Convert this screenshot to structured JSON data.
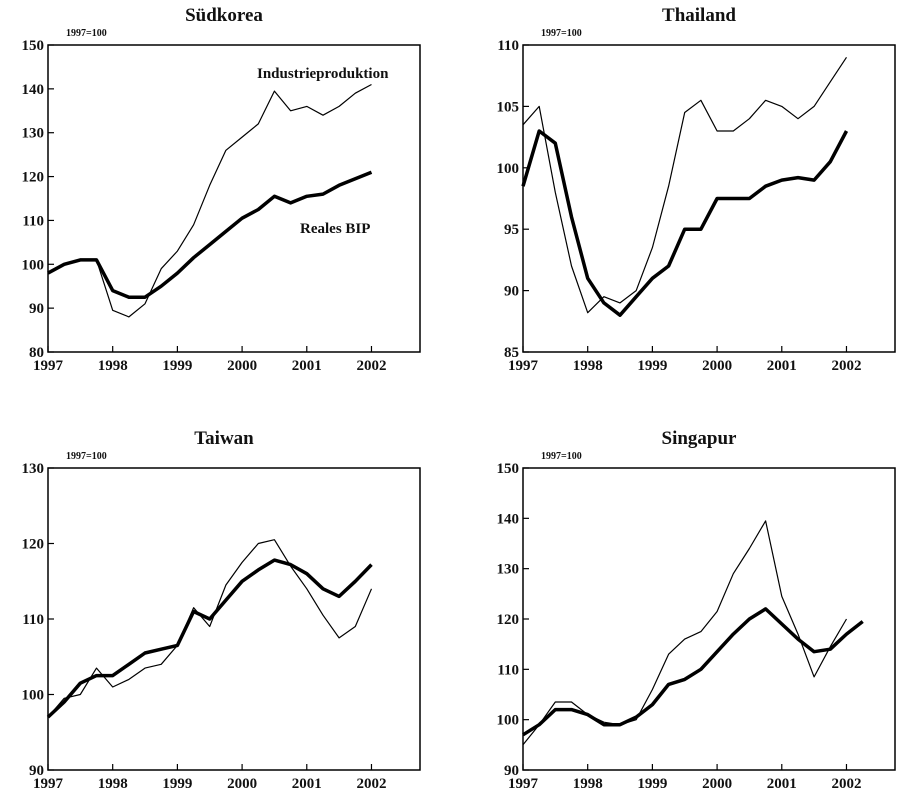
{
  "chart_data": [
    {
      "type": "line",
      "title": "Südkorea",
      "subtitle": "1997=100",
      "x": [
        1997,
        1997.25,
        1997.5,
        1997.75,
        1998,
        1998.25,
        1998.5,
        1998.75,
        1999,
        1999.25,
        1999.5,
        1999.75,
        2000,
        2000.25,
        2000.5,
        2000.75,
        2001,
        2001.25,
        2001.5,
        2001.75,
        2002
      ],
      "series": [
        {
          "name": "Industrieproduktion",
          "color": "#000000",
          "values": [
            98,
            100,
            101,
            101,
            89.5,
            88,
            91,
            99,
            103,
            109,
            118,
            126,
            129,
            132,
            139.5,
            135,
            136,
            134,
            136,
            139,
            141
          ]
        },
        {
          "name": "Reales BIP",
          "color": "#000000",
          "values": [
            98,
            100,
            101,
            101,
            94,
            92.5,
            92.5,
            95,
            98,
            101.5,
            104.5,
            107.5,
            110.5,
            112.5,
            115.5,
            114,
            115.5,
            116,
            118,
            119.5,
            121
          ]
        }
      ],
      "xlim": [
        1997,
        2002.75
      ],
      "xticks": [
        1997,
        1998,
        1999,
        2000,
        2001,
        2002
      ],
      "ylim": [
        80,
        150
      ],
      "yticks": [
        80,
        90,
        100,
        110,
        120,
        130,
        140,
        150
      ],
      "grid": false
    },
    {
      "type": "line",
      "title": "Thailand",
      "subtitle": "1997=100",
      "x": [
        1997,
        1997.25,
        1997.5,
        1997.75,
        1998,
        1998.25,
        1998.5,
        1998.75,
        1999,
        1999.25,
        1999.5,
        1999.75,
        2000,
        2000.25,
        2000.5,
        2000.75,
        2001,
        2001.25,
        2001.5,
        2001.75,
        2002
      ],
      "series": [
        {
          "color": "#000000",
          "values": [
            103.5,
            105,
            98,
            92,
            88.2,
            89.5,
            89,
            90,
            93.5,
            98.5,
            104.5,
            105.5,
            103,
            103,
            104,
            105.5,
            105,
            104,
            105,
            107,
            109
          ]
        },
        {
          "color": "#000000",
          "values": [
            98.5,
            103,
            102,
            96,
            91,
            89,
            88,
            89.5,
            91,
            92,
            95,
            95,
            97.5,
            97.5,
            97.5,
            98.5,
            99,
            99.2,
            99,
            100.5,
            103
          ]
        }
      ],
      "xlim": [
        1997,
        2002.75
      ],
      "xticks": [
        1997,
        1998,
        1999,
        2000,
        2001,
        2002
      ],
      "ylim": [
        85,
        110
      ],
      "yticks": [
        85,
        90,
        95,
        100,
        105,
        110
      ],
      "grid": false
    },
    {
      "type": "line",
      "title": "Taiwan",
      "subtitle": "1997=100",
      "x": [
        1997,
        1997.25,
        1997.5,
        1997.75,
        1998,
        1998.25,
        1998.5,
        1998.75,
        1999,
        1999.25,
        1999.5,
        1999.75,
        2000,
        2000.25,
        2000.5,
        2000.75,
        2001,
        2001.25,
        2001.5,
        2001.75,
        2002
      ],
      "series": [
        {
          "color": "#000000",
          "values": [
            97,
            99.5,
            100,
            103.5,
            101,
            102,
            103.5,
            104,
            106.5,
            111.5,
            109,
            114.5,
            117.5,
            120,
            120.5,
            117,
            114,
            110.5,
            107.5,
            109,
            114
          ]
        },
        {
          "color": "#000000",
          "values": [
            97,
            99,
            101.5,
            102.5,
            102.5,
            104,
            105.5,
            106,
            106.5,
            111,
            110,
            112.5,
            115,
            116.5,
            117.8,
            117.2,
            116,
            114,
            113,
            115,
            117.2
          ]
        }
      ],
      "xlim": [
        1997,
        2002.75
      ],
      "xticks": [
        1997,
        1998,
        1999,
        2000,
        2001,
        2002
      ],
      "ylim": [
        90,
        130
      ],
      "yticks": [
        90,
        100,
        110,
        120,
        130
      ],
      "grid": false
    },
    {
      "type": "line",
      "title": "Singapur",
      "subtitle": "1997=100",
      "x": [
        1997,
        1997.25,
        1997.5,
        1997.75,
        1998,
        1998.25,
        1998.5,
        1998.75,
        1999,
        1999.25,
        1999.5,
        1999.75,
        2000,
        2000.25,
        2000.5,
        2000.75,
        2001,
        2001.25,
        2001.5,
        2001.75,
        2002,
        2002.25
      ],
      "series": [
        {
          "color": "#000000",
          "values": [
            95,
            99,
            103.5,
            103.5,
            101,
            99.5,
            99,
            100,
            106,
            113,
            116,
            117.5,
            121.5,
            129,
            134,
            139.5,
            124.5,
            117,
            108.5,
            114.5,
            120,
            null
          ]
        },
        {
          "color": "#000000",
          "values": [
            97,
            99,
            102,
            102,
            101,
            99,
            99,
            100.5,
            103,
            107,
            108,
            110,
            113.5,
            117,
            120,
            122,
            119,
            116,
            113.5,
            114,
            117,
            119.5
          ]
        }
      ],
      "xlim": [
        1997,
        2002.75
      ],
      "xticks": [
        1997,
        1998,
        1999,
        2000,
        2001,
        2002
      ],
      "ylim": [
        90,
        150
      ],
      "yticks": [
        90,
        100,
        110,
        120,
        130,
        140,
        150
      ],
      "grid": false
    }
  ]
}
